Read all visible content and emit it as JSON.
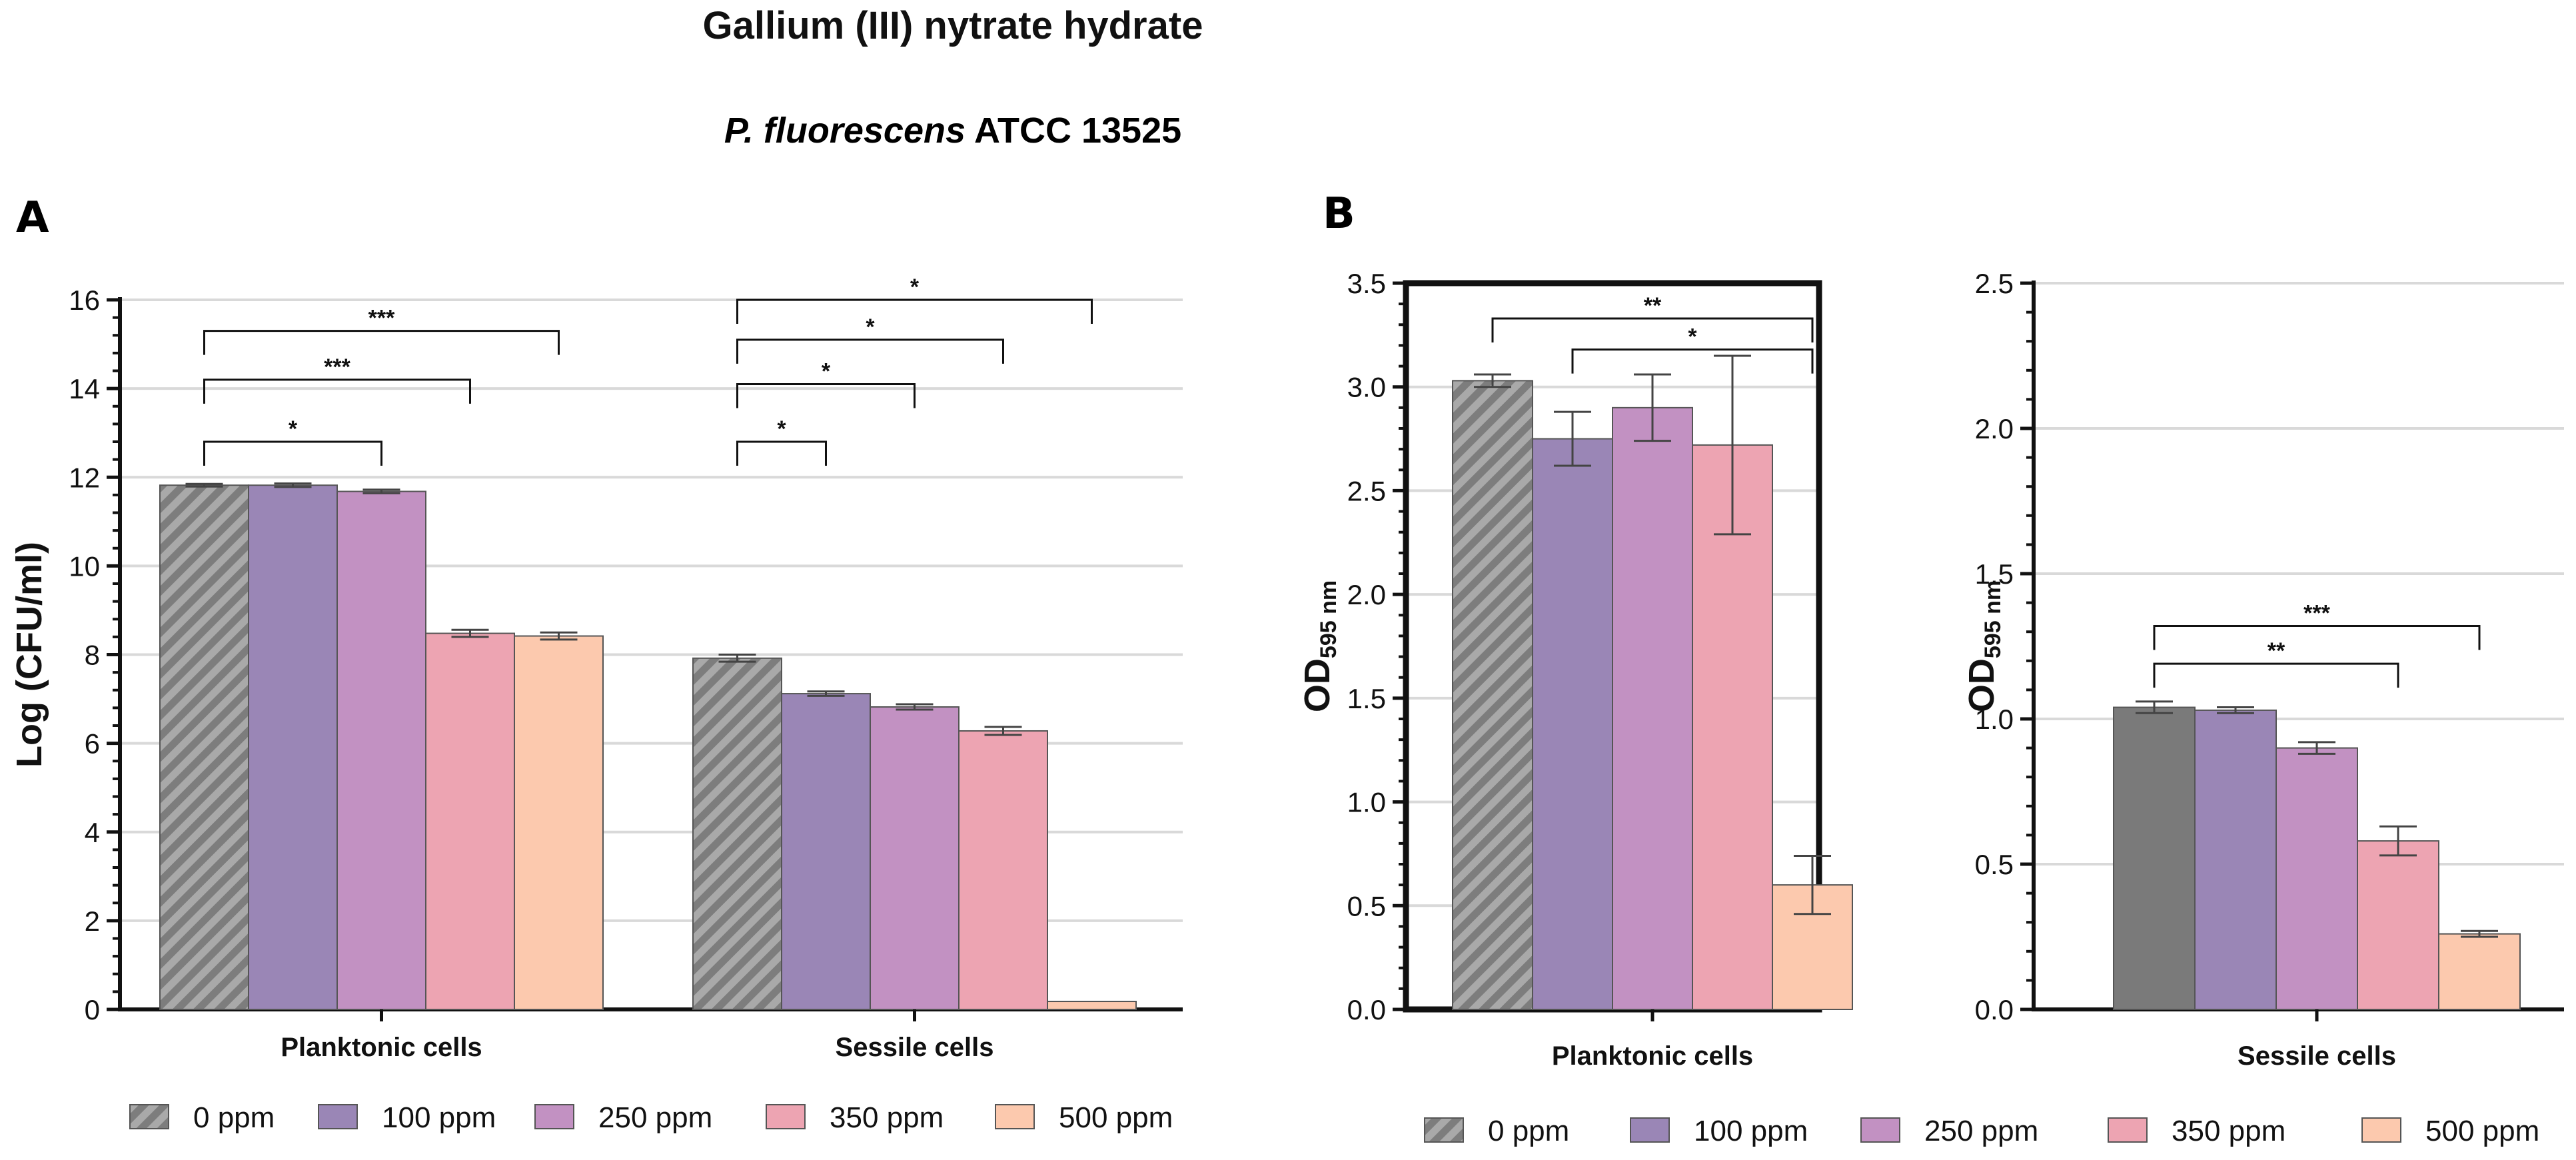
{
  "title": "Gallium (III) nytrate hydrate",
  "subtitle_italic": "P. fluorescens",
  "subtitle_rest": " ATCC 13525",
  "colors": {
    "0 ppm": "#9e9e9e",
    "0 ppm sessile B": "#7a7a7a",
    "100 ppm": "#9a86b6",
    "250 ppm": "#c291c2",
    "350 ppm": "#eda4b2",
    "500 ppm": "#fcc9ae",
    "grid": "#d9d9d9",
    "axis": "#111111"
  },
  "legend": {
    "labels": [
      "0 ppm",
      "100 ppm",
      "250 ppm",
      "350 ppm",
      "500 ppm"
    ]
  },
  "chart_data": [
    {
      "panel": "A",
      "type": "bar",
      "ylabel": "Log (CFU/ml)",
      "ylim": [
        0,
        16
      ],
      "yticks": [
        "0",
        "2",
        "4",
        "6",
        "8",
        "10",
        "12",
        "14",
        "16"
      ],
      "grid": true,
      "categories": [
        "Planktonic cells",
        "Sessile cells"
      ],
      "series": [
        {
          "name": "0 ppm",
          "pattern": "hatch",
          "values": [
            11.82,
            7.92
          ],
          "errors": [
            0.03,
            0.08
          ]
        },
        {
          "name": "100 ppm",
          "values": [
            11.82,
            7.12
          ],
          "errors": [
            0.04,
            0.05
          ]
        },
        {
          "name": "250 ppm",
          "values": [
            11.68,
            6.82
          ],
          "errors": [
            0.04,
            0.06
          ]
        },
        {
          "name": "350 ppm",
          "values": [
            8.48,
            6.28
          ],
          "errors": [
            0.08,
            0.09
          ]
        },
        {
          "name": "500 ppm",
          "values": [
            8.42,
            0.18
          ],
          "errors": [
            0.08,
            0.0
          ]
        }
      ],
      "significance": [
        {
          "category": "Planktonic cells",
          "from": "0 ppm",
          "to": "250 ppm",
          "y": 12.8,
          "label": "*"
        },
        {
          "category": "Planktonic cells",
          "from": "0 ppm",
          "to": "350 ppm",
          "y": 14.2,
          "label": "***"
        },
        {
          "category": "Planktonic cells",
          "from": "0 ppm",
          "to": "500 ppm",
          "y": 15.3,
          "label": "***"
        },
        {
          "category": "Sessile cells",
          "from": "0 ppm",
          "to": "100 ppm",
          "y": 12.8,
          "label": "*"
        },
        {
          "category": "Sessile cells",
          "from": "0 ppm",
          "to": "250 ppm",
          "y": 14.1,
          "label": "*"
        },
        {
          "category": "Sessile cells",
          "from": "0 ppm",
          "to": "350 ppm",
          "y": 15.1,
          "label": "*"
        },
        {
          "category": "Sessile cells",
          "from": "0 ppm",
          "to": "500 ppm",
          "y": 16.0,
          "label": "*"
        }
      ]
    },
    {
      "panel": "B",
      "type": "bar",
      "ylabel_main": "OD",
      "ylabel_sub": "595 nm",
      "ylim": [
        0,
        3.5
      ],
      "yticks": [
        "0.0",
        "0.5",
        "1.0",
        "1.5",
        "2.0",
        "2.5",
        "3.0",
        "3.5"
      ],
      "grid": true,
      "categories": [
        "Planktonic cells"
      ],
      "series": [
        {
          "name": "0 ppm",
          "pattern": "hatch",
          "values": [
            3.03
          ],
          "errors": [
            0.03
          ]
        },
        {
          "name": "100 ppm",
          "values": [
            2.75
          ],
          "errors": [
            0.13
          ]
        },
        {
          "name": "250 ppm",
          "values": [
            2.9
          ],
          "errors": [
            0.16
          ]
        },
        {
          "name": "350 ppm",
          "values": [
            2.72
          ],
          "errors": [
            0.43
          ]
        },
        {
          "name": "500 ppm",
          "values": [
            0.6
          ],
          "errors": [
            0.14
          ]
        }
      ],
      "significance": [
        {
          "category": "Planktonic cells",
          "from": "0 ppm",
          "to": "500 ppm",
          "y": 3.33,
          "label": "**"
        },
        {
          "category": "Planktonic cells",
          "from": "100 ppm",
          "to": "500 ppm",
          "y": 3.18,
          "label": "*"
        }
      ]
    },
    {
      "panel": "B",
      "type": "bar",
      "ylabel_main": "OD",
      "ylabel_sub": "595 nm",
      "ylim": [
        0,
        2.5
      ],
      "yticks": [
        "0.0",
        "0.5",
        "1.0",
        "1.5",
        "2.0",
        "2.5"
      ],
      "grid": true,
      "categories": [
        "Sessile cells"
      ],
      "series": [
        {
          "name": "0 ppm",
          "pattern": "solid-dark",
          "values": [
            1.04
          ],
          "errors": [
            0.02
          ]
        },
        {
          "name": "100 ppm",
          "values": [
            1.03
          ],
          "errors": [
            0.01
          ]
        },
        {
          "name": "250 ppm",
          "values": [
            0.9
          ],
          "errors": [
            0.02
          ]
        },
        {
          "name": "350 ppm",
          "values": [
            0.58
          ],
          "errors": [
            0.05
          ]
        },
        {
          "name": "500 ppm",
          "values": [
            0.26
          ],
          "errors": [
            0.01
          ]
        }
      ],
      "significance": [
        {
          "category": "Sessile cells",
          "from": "0 ppm",
          "to": "350 ppm",
          "y": 1.19,
          "label": "**"
        },
        {
          "category": "Sessile cells",
          "from": "0 ppm",
          "to": "500 ppm",
          "y": 1.32,
          "label": "***"
        }
      ]
    }
  ],
  "panels": {
    "A": {
      "label": "A"
    },
    "B": {
      "label": "B"
    }
  }
}
